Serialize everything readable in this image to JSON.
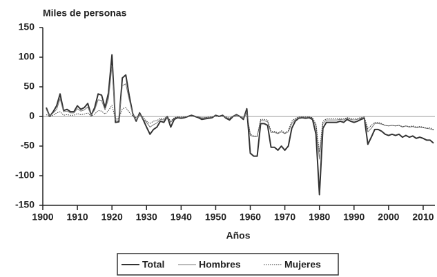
{
  "chart_data": {
    "type": "line",
    "title": "Miles de personas",
    "xlabel": "Años",
    "x": [
      1901,
      1902,
      1903,
      1904,
      1905,
      1906,
      1907,
      1908,
      1909,
      1910,
      1911,
      1912,
      1913,
      1914,
      1915,
      1916,
      1917,
      1918,
      1919,
      1920,
      1921,
      1922,
      1923,
      1924,
      1925,
      1926,
      1927,
      1928,
      1929,
      1930,
      1931,
      1932,
      1933,
      1934,
      1935,
      1936,
      1937,
      1938,
      1939,
      1940,
      1941,
      1942,
      1943,
      1944,
      1945,
      1946,
      1947,
      1948,
      1949,
      1950,
      1951,
      1952,
      1953,
      1954,
      1955,
      1956,
      1957,
      1958,
      1959,
      1960,
      1961,
      1962,
      1963,
      1964,
      1965,
      1966,
      1967,
      1968,
      1969,
      1970,
      1971,
      1972,
      1973,
      1974,
      1975,
      1976,
      1977,
      1978,
      1979,
      1980,
      1981,
      1982,
      1983,
      1984,
      1985,
      1986,
      1987,
      1988,
      1989,
      1990,
      1991,
      1992,
      1993,
      1994,
      1995,
      1996,
      1997,
      1998,
      1999,
      2000,
      2001,
      2002,
      2003,
      2004,
      2005,
      2006,
      2007,
      2008,
      2009,
      2010,
      2011,
      2012,
      2013
    ],
    "series": [
      {
        "name": "Total",
        "color": "#333333",
        "width": 2,
        "dash": "none",
        "values": [
          15,
          0,
          8,
          18,
          38,
          10,
          12,
          8,
          8,
          18,
          12,
          15,
          22,
          2,
          15,
          38,
          36,
          15,
          40,
          104,
          -10,
          -9,
          65,
          70,
          35,
          5,
          -8,
          6,
          -5,
          -18,
          -30,
          -22,
          -18,
          -8,
          -10,
          0,
          -18,
          -5,
          -2,
          -3,
          -2,
          0,
          2,
          0,
          -2,
          -5,
          -4,
          -3,
          -2,
          2,
          0,
          2,
          -3,
          -6,
          0,
          3,
          0,
          -5,
          13,
          -62,
          -67,
          -67,
          -12,
          -12,
          -15,
          -52,
          -52,
          -57,
          -50,
          -57,
          -50,
          -20,
          -8,
          -3,
          -2,
          -3,
          -2,
          -5,
          -30,
          -132,
          -20,
          -10,
          -10,
          -10,
          -10,
          -8,
          -10,
          -5,
          -8,
          -10,
          -8,
          -5,
          -3,
          -47,
          -35,
          -22,
          -22,
          -25,
          -30,
          -32,
          -30,
          -32,
          -30,
          -35,
          -32,
          -35,
          -33,
          -37,
          -35,
          -37,
          -40,
          -40,
          -45
        ]
      },
      {
        "name": "Hombres",
        "color": "#777777",
        "width": 1,
        "dash": "none",
        "values": [
          12,
          0,
          6,
          12,
          30,
          8,
          9,
          6,
          6,
          13,
          9,
          11,
          16,
          2,
          11,
          28,
          27,
          11,
          30,
          85,
          -6,
          -6,
          52,
          55,
          28,
          4,
          -6,
          4,
          -4,
          -10,
          -18,
          -14,
          -11,
          -5,
          -6,
          0,
          -10,
          -3,
          -1,
          -2,
          -1,
          0,
          1,
          0,
          -1,
          -3,
          -2,
          -2,
          -1,
          1,
          0,
          1,
          -2,
          -3,
          0,
          2,
          0,
          -3,
          8,
          -32,
          -34,
          -34,
          -7,
          -7,
          -9,
          -27,
          -27,
          -29,
          -26,
          -29,
          -26,
          -12,
          -5,
          -2,
          -1,
          -2,
          -1,
          -3,
          -17,
          -72,
          -12,
          -6,
          -6,
          -6,
          -6,
          -5,
          -6,
          -3,
          -5,
          -6,
          -5,
          -3,
          -2,
          -26,
          -20,
          -12,
          -12,
          -13,
          -15,
          -16,
          -15,
          -16,
          -15,
          -18,
          -16,
          -18,
          -17,
          -19,
          -18,
          -19,
          -20,
          -21,
          -23
        ]
      },
      {
        "name": "Mujeres",
        "color": "#333333",
        "width": 1,
        "dash": "1.5 1.5",
        "values": [
          3,
          0,
          2,
          6,
          8,
          2,
          3,
          2,
          2,
          5,
          3,
          4,
          6,
          0,
          4,
          10,
          9,
          4,
          10,
          19,
          -4,
          -3,
          13,
          15,
          7,
          1,
          -2,
          2,
          -1,
          -8,
          -12,
          -8,
          -7,
          -3,
          -4,
          0,
          -8,
          -2,
          -1,
          -1,
          -1,
          0,
          1,
          0,
          -1,
          -2,
          -2,
          -1,
          -1,
          1,
          0,
          1,
          -1,
          -3,
          0,
          1,
          0,
          -2,
          5,
          -30,
          -33,
          -33,
          -5,
          -5,
          -6,
          -25,
          -25,
          -28,
          -24,
          -28,
          -24,
          -8,
          -3,
          -1,
          -1,
          -1,
          -1,
          -2,
          -13,
          -60,
          -8,
          -4,
          -4,
          -4,
          -4,
          -3,
          -4,
          -2,
          -3,
          -4,
          -3,
          -2,
          -1,
          -21,
          -15,
          -10,
          -10,
          -12,
          -15,
          -16,
          -15,
          -16,
          -15,
          -17,
          -16,
          -17,
          -16,
          -18,
          -17,
          -18,
          -20,
          -19,
          -22
        ]
      }
    ],
    "xlim": [
      1900,
      2013
    ],
    "xticks": [
      1900,
      1910,
      1920,
      1930,
      1940,
      1950,
      1960,
      1970,
      1980,
      1990,
      2000,
      2010
    ],
    "ylim": [
      -150,
      150
    ],
    "yticks": [
      -150,
      -100,
      -50,
      0,
      50,
      100,
      150
    ],
    "zero_line": true
  }
}
